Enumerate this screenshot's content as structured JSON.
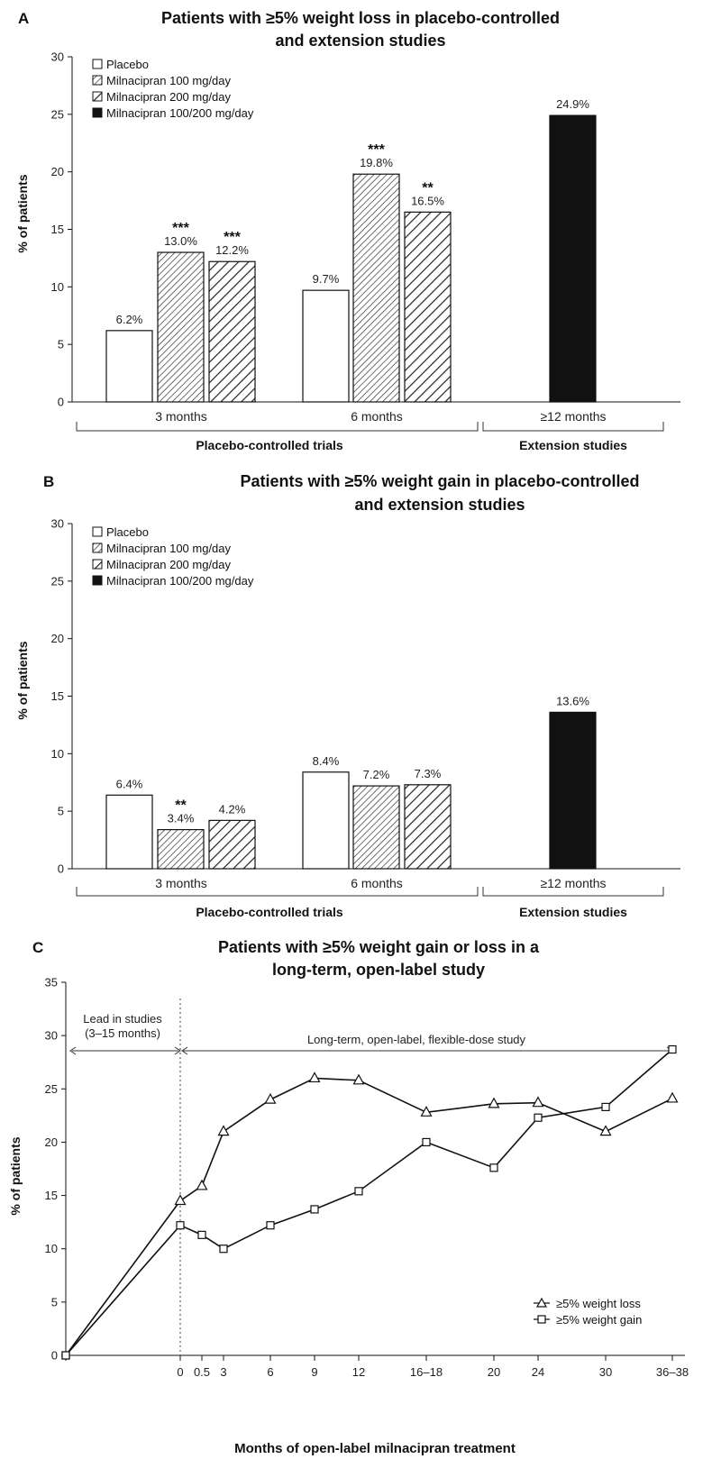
{
  "chart_data": [
    {
      "panel": "A",
      "type": "bar",
      "title": [
        "Patients with ≥5% weight loss in placebo-controlled",
        "and extension studies"
      ],
      "ylabel": "% of patients",
      "ylim": [
        0,
        30
      ],
      "yticks": [
        0,
        5,
        10,
        15,
        20,
        25,
        30
      ],
      "legend": [
        "Placebo",
        "Milnacipran 100 mg/day",
        "Milnacipran 200 mg/day",
        "Milnacipran 100/200 mg/day"
      ],
      "groups": [
        {
          "label": "3 months",
          "bars": [
            {
              "series": 0,
              "value": 6.2,
              "label": "6.2%",
              "sig": ""
            },
            {
              "series": 1,
              "value": 13.0,
              "label": "13.0%",
              "sig": "***"
            },
            {
              "series": 2,
              "value": 12.2,
              "label": "12.2%",
              "sig": "***"
            }
          ]
        },
        {
          "label": "6 months",
          "bars": [
            {
              "series": 0,
              "value": 9.7,
              "label": "9.7%",
              "sig": ""
            },
            {
              "series": 1,
              "value": 19.8,
              "label": "19.8%",
              "sig": "***"
            },
            {
              "series": 2,
              "value": 16.5,
              "label": "16.5%",
              "sig": "**"
            }
          ]
        },
        {
          "label": "≥12 months",
          "bars": [
            {
              "series": 3,
              "value": 24.9,
              "label": "24.9%",
              "sig": ""
            }
          ]
        }
      ],
      "brackets": [
        "Placebo-controlled trials",
        "Extension studies"
      ]
    },
    {
      "panel": "B",
      "type": "bar",
      "title": [
        "Patients with ≥5% weight gain in placebo-controlled",
        "and extension studies"
      ],
      "ylabel": "% of patients",
      "ylim": [
        0,
        30
      ],
      "yticks": [
        0,
        5,
        10,
        15,
        20,
        25,
        30
      ],
      "legend": [
        "Placebo",
        "Milnacipran 100 mg/day",
        "Milnacipran 200 mg/day",
        "Milnacipran 100/200 mg/day"
      ],
      "groups": [
        {
          "label": "3 months",
          "bars": [
            {
              "series": 0,
              "value": 6.4,
              "label": "6.4%",
              "sig": ""
            },
            {
              "series": 1,
              "value": 3.4,
              "label": "3.4%",
              "sig": "**"
            },
            {
              "series": 2,
              "value": 4.2,
              "label": "4.2%",
              "sig": ""
            }
          ]
        },
        {
          "label": "6 months",
          "bars": [
            {
              "series": 0,
              "value": 8.4,
              "label": "8.4%",
              "sig": ""
            },
            {
              "series": 1,
              "value": 7.2,
              "label": "7.2%",
              "sig": ""
            },
            {
              "series": 2,
              "value": 7.3,
              "label": "7.3%",
              "sig": ""
            }
          ]
        },
        {
          "label": "≥12 months",
          "bars": [
            {
              "series": 3,
              "value": 13.6,
              "label": "13.6%",
              "sig": ""
            }
          ]
        }
      ],
      "brackets": [
        "Placebo-controlled trials",
        "Extension studies"
      ]
    },
    {
      "panel": "C",
      "type": "line",
      "title": [
        "Patients with ≥5% weight gain or loss in a",
        "long-term, open-label study"
      ],
      "xlabel": "Months of open-label milnacipran treatment",
      "ylabel": "% of patients",
      "ylim": [
        0,
        35
      ],
      "yticks": [
        0,
        5,
        10,
        15,
        20,
        25,
        30,
        35
      ],
      "x": [
        "",
        "0",
        "0.5",
        "3",
        "6",
        "9",
        "12",
        "16–18",
        "20",
        "24",
        "30",
        "36–38"
      ],
      "series": [
        {
          "name": "≥5% weight loss",
          "marker": "triangle",
          "values": [
            0,
            14.5,
            15.9,
            21.0,
            24.0,
            26.0,
            25.8,
            22.8,
            23.6,
            23.7,
            21.0,
            24.1
          ]
        },
        {
          "name": "≥5% weight gain",
          "marker": "square",
          "values": [
            0,
            12.2,
            11.3,
            10.0,
            12.2,
            13.7,
            15.4,
            20.0,
            17.6,
            22.3,
            23.3,
            28.7
          ]
        }
      ],
      "annotations": {
        "lead_in": [
          "Lead in studies",
          "(3–15 months)"
        ],
        "long_term": "Long-term, open-label, flexible-dose study"
      }
    }
  ]
}
